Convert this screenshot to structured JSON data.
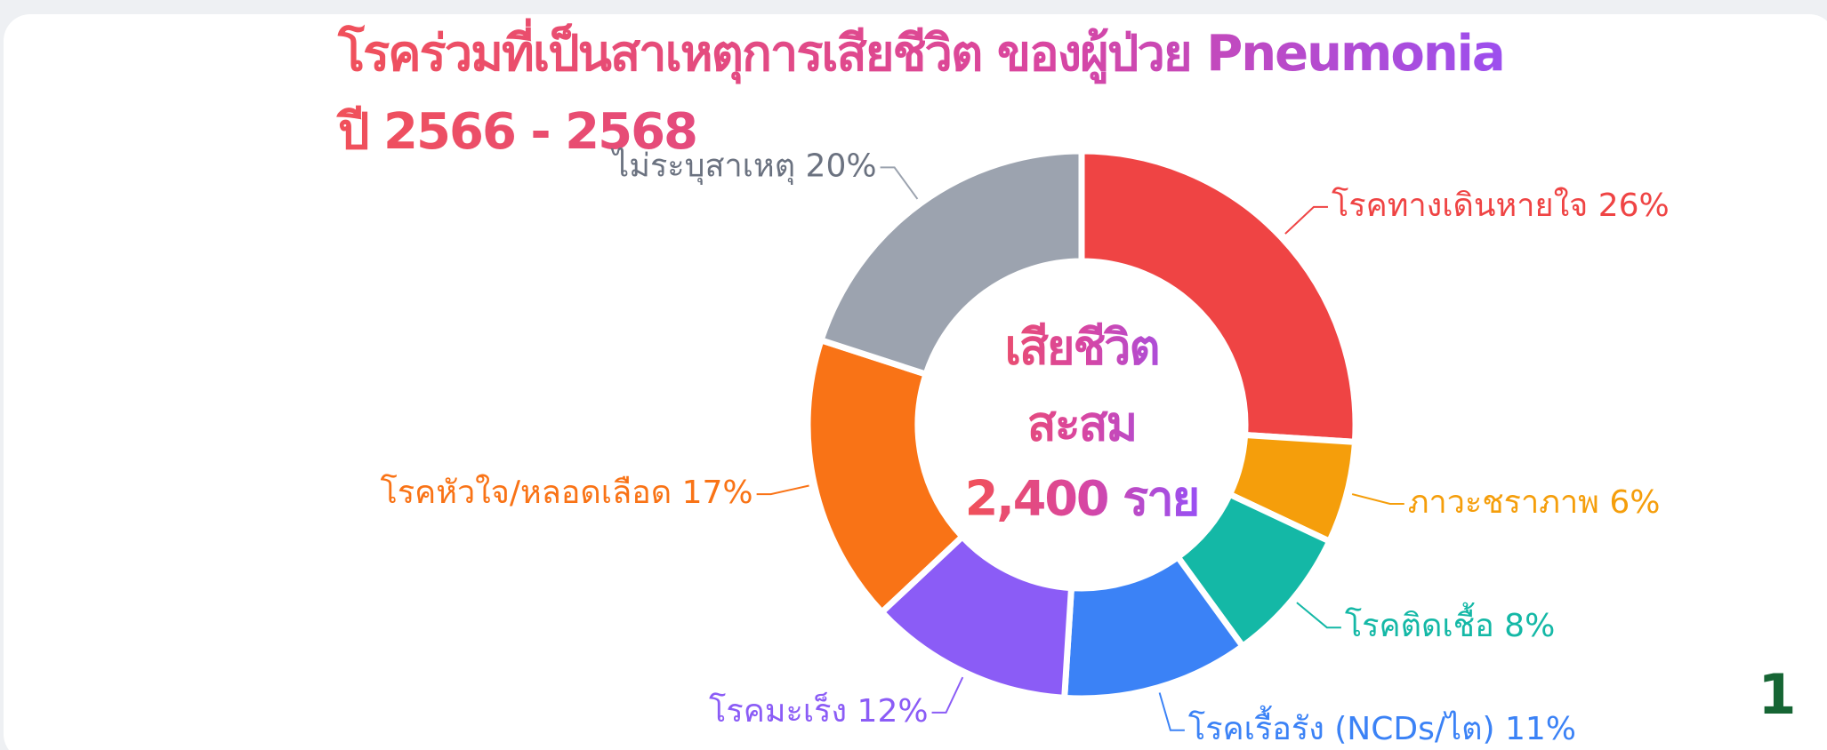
{
  "chart_data": {
    "type": "pie",
    "title": "โรคร่วมที่เป็นสาเหตุการเสียชีวิต ของผู้ป่วย Pneumonia",
    "subtitle": "ปี 2566 - 2568",
    "center_text": [
      "เสียชีวิต",
      "สะสม",
      "2,400 ราย"
    ],
    "categories": [
      "โรคทางเดินหายใจ",
      "ภาวะชราภาพ",
      "โรคติดเชื้อ",
      "โรคเรื้อรัง (NCDs/ไต)",
      "โรคมะเร็ง",
      "โรคหัวใจ/หลอดเลือด",
      "ไม่ระบุสาเหตุ"
    ],
    "values": [
      26,
      6,
      8,
      11,
      12,
      17,
      20
    ],
    "value_labels": [
      "26%",
      "6%",
      "8%",
      "11%",
      "12%",
      "17%",
      "20%"
    ],
    "colors": [
      "#ef4444",
      "#f59e0b",
      "#14b8a6",
      "#3b82f6",
      "#8b5cf6",
      "#f97316",
      "#9ca3af"
    ]
  },
  "page_number": "1"
}
